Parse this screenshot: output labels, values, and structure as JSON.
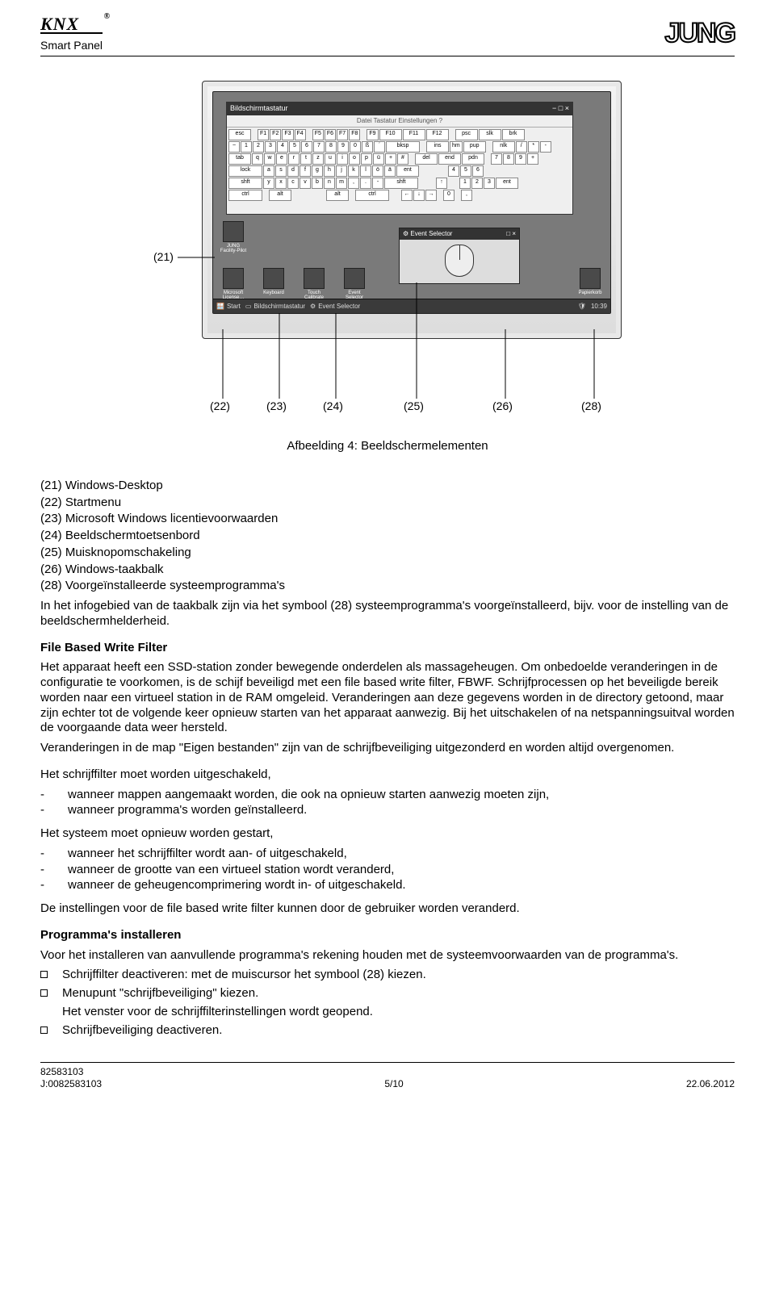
{
  "header": {
    "knx": "KNX",
    "subtitle": "Smart Panel",
    "brand": "JUNG"
  },
  "figure": {
    "jung_small": "JUNG",
    "keyboard": {
      "title": "Bildschirmtastatur",
      "tabs": "Datei  Tastatur  Einstellungen  ?",
      "rows": [
        [
          "esc",
          "",
          "F1",
          "F2",
          "F3",
          "F4",
          "",
          "F5",
          "F6",
          "F7",
          "F8",
          "",
          "F9",
          "F10",
          "F11",
          "F12",
          "",
          "psc",
          "slk",
          "brk"
        ],
        [
          "~",
          "1",
          "2",
          "3",
          "4",
          "5",
          "6",
          "7",
          "8",
          "9",
          "0",
          "ß",
          "´",
          "bksp",
          "",
          "ins",
          "hm",
          "pup",
          "",
          "nlk",
          "/",
          "*",
          "-"
        ],
        [
          "tab",
          "q",
          "w",
          "e",
          "r",
          "t",
          "z",
          "u",
          "i",
          "o",
          "p",
          "ü",
          "+",
          "#",
          "",
          "del",
          "end",
          "pdn",
          "",
          "7",
          "8",
          "9",
          "+"
        ],
        [
          "lock",
          "a",
          "s",
          "d",
          "f",
          "g",
          "h",
          "j",
          "k",
          "l",
          "ö",
          "ä",
          "ent",
          "",
          "",
          "",
          "",
          "",
          "4",
          "5",
          "6"
        ],
        [
          "shft",
          "y",
          "x",
          "c",
          "v",
          "b",
          "n",
          "m",
          ",",
          ".",
          "-",
          "shft",
          "",
          "",
          "",
          "↑",
          "",
          "",
          "1",
          "2",
          "3",
          "ent"
        ],
        [
          "ctrl",
          "",
          "alt",
          "",
          "",
          "",
          "",
          "",
          "",
          "alt",
          "",
          "ctrl",
          "",
          "",
          "←",
          "↓",
          "→",
          "",
          "0",
          "",
          ","
        ]
      ]
    },
    "desktop_icons": {
      "fp": "JUNG Facility-Pilot",
      "ms": "Microsoft License…",
      "kb": "Keyboard",
      "tc": "Touch Calibrate",
      "es": "Event Selector",
      "pk": "Papierkorb"
    },
    "event_selector": {
      "title": "Event Selector"
    },
    "taskbar": {
      "start": "Start",
      "item1": "Bildschirmtastatur",
      "item2": "Event Selector",
      "clock": "10:39"
    },
    "callouts": {
      "c21": "(21)",
      "c22": "(22)",
      "c23": "(23)",
      "c24": "(24)",
      "c25": "(25)",
      "c26": "(26)",
      "c28": "(28)"
    },
    "caption": "Afbeelding 4: Beeldschermelementen"
  },
  "legend": {
    "l21": "(21) Windows-Desktop",
    "l22": "(22) Startmenu",
    "l23": "(23) Microsoft Windows licentievoorwaarden",
    "l24": "(24) Beeldschermtoetsenbord",
    "l25": "(25) Muisknopomschakeling",
    "l26": "(26) Windows-taakbalk",
    "l28": "(28) Voorgeïnstalleerde systeemprogramma's"
  },
  "para_info": "In het infogebied van de taakbalk zijn via het symbool (28) systeemprogramma's voorgeïnstalleerd, bijv. voor de instelling van de beeldschermhelderheid.",
  "fbwf": {
    "title": "File Based Write Filter",
    "p1": "Het apparaat heeft een SSD-station zonder bewegende onderdelen als massageheugen. Om onbedoelde veranderingen in de configuratie te voorkomen, is de schijf beveiligd met een file based write filter, FBWF. Schrijfprocessen op het beveiligde bereik worden naar een virtueel station in de RAM omgeleid. Veranderingen aan deze gegevens worden in de directory getoond, maar zijn echter tot de volgende keer opnieuw starten van het apparaat aanwezig. Bij het uitschakelen of na netspanningsuitval worden de voorgaande data weer hersteld.",
    "p2": "Veranderingen in de map \"Eigen bestanden\" zijn van de schrijfbeveiliging uitgezonderd en worden altijd overgenomen.",
    "p3": "Het schrijffilter moet worden uitgeschakeld,",
    "d1": "wanneer mappen aangemaakt worden, die ook na opnieuw starten aanwezig moeten zijn,",
    "d2": "wanneer programma's worden geïnstalleerd.",
    "p4": "Het systeem moet opnieuw worden gestart,",
    "d3": "wanneer het schrijffilter wordt aan- of uitgeschakeld,",
    "d4": "wanneer de grootte van een virtueel station wordt veranderd,",
    "d5": "wanneer de geheugencomprimering wordt in- of uitgeschakeld.",
    "p5": "De instellingen voor de file based write filter kunnen door de gebruiker worden veranderd."
  },
  "install": {
    "title": "Programma's installeren",
    "p1": "Voor het installeren van aanvullende programma's rekening houden met de systeemvoorwaarden van de programma's.",
    "s1": "Schrijffilter deactiveren: met de muiscursor het symbool (28) kiezen.",
    "s2": "Menupunt \"schrijfbeveiliging\" kiezen.",
    "s2b": "Het venster voor de schrijffilterinstellingen wordt geopend.",
    "s3": "Schrijfbeveiliging deactiveren."
  },
  "footer": {
    "ref1": "82583103",
    "ref2": "J:0082583103",
    "page": "5/10",
    "date": "22.06.2012"
  }
}
